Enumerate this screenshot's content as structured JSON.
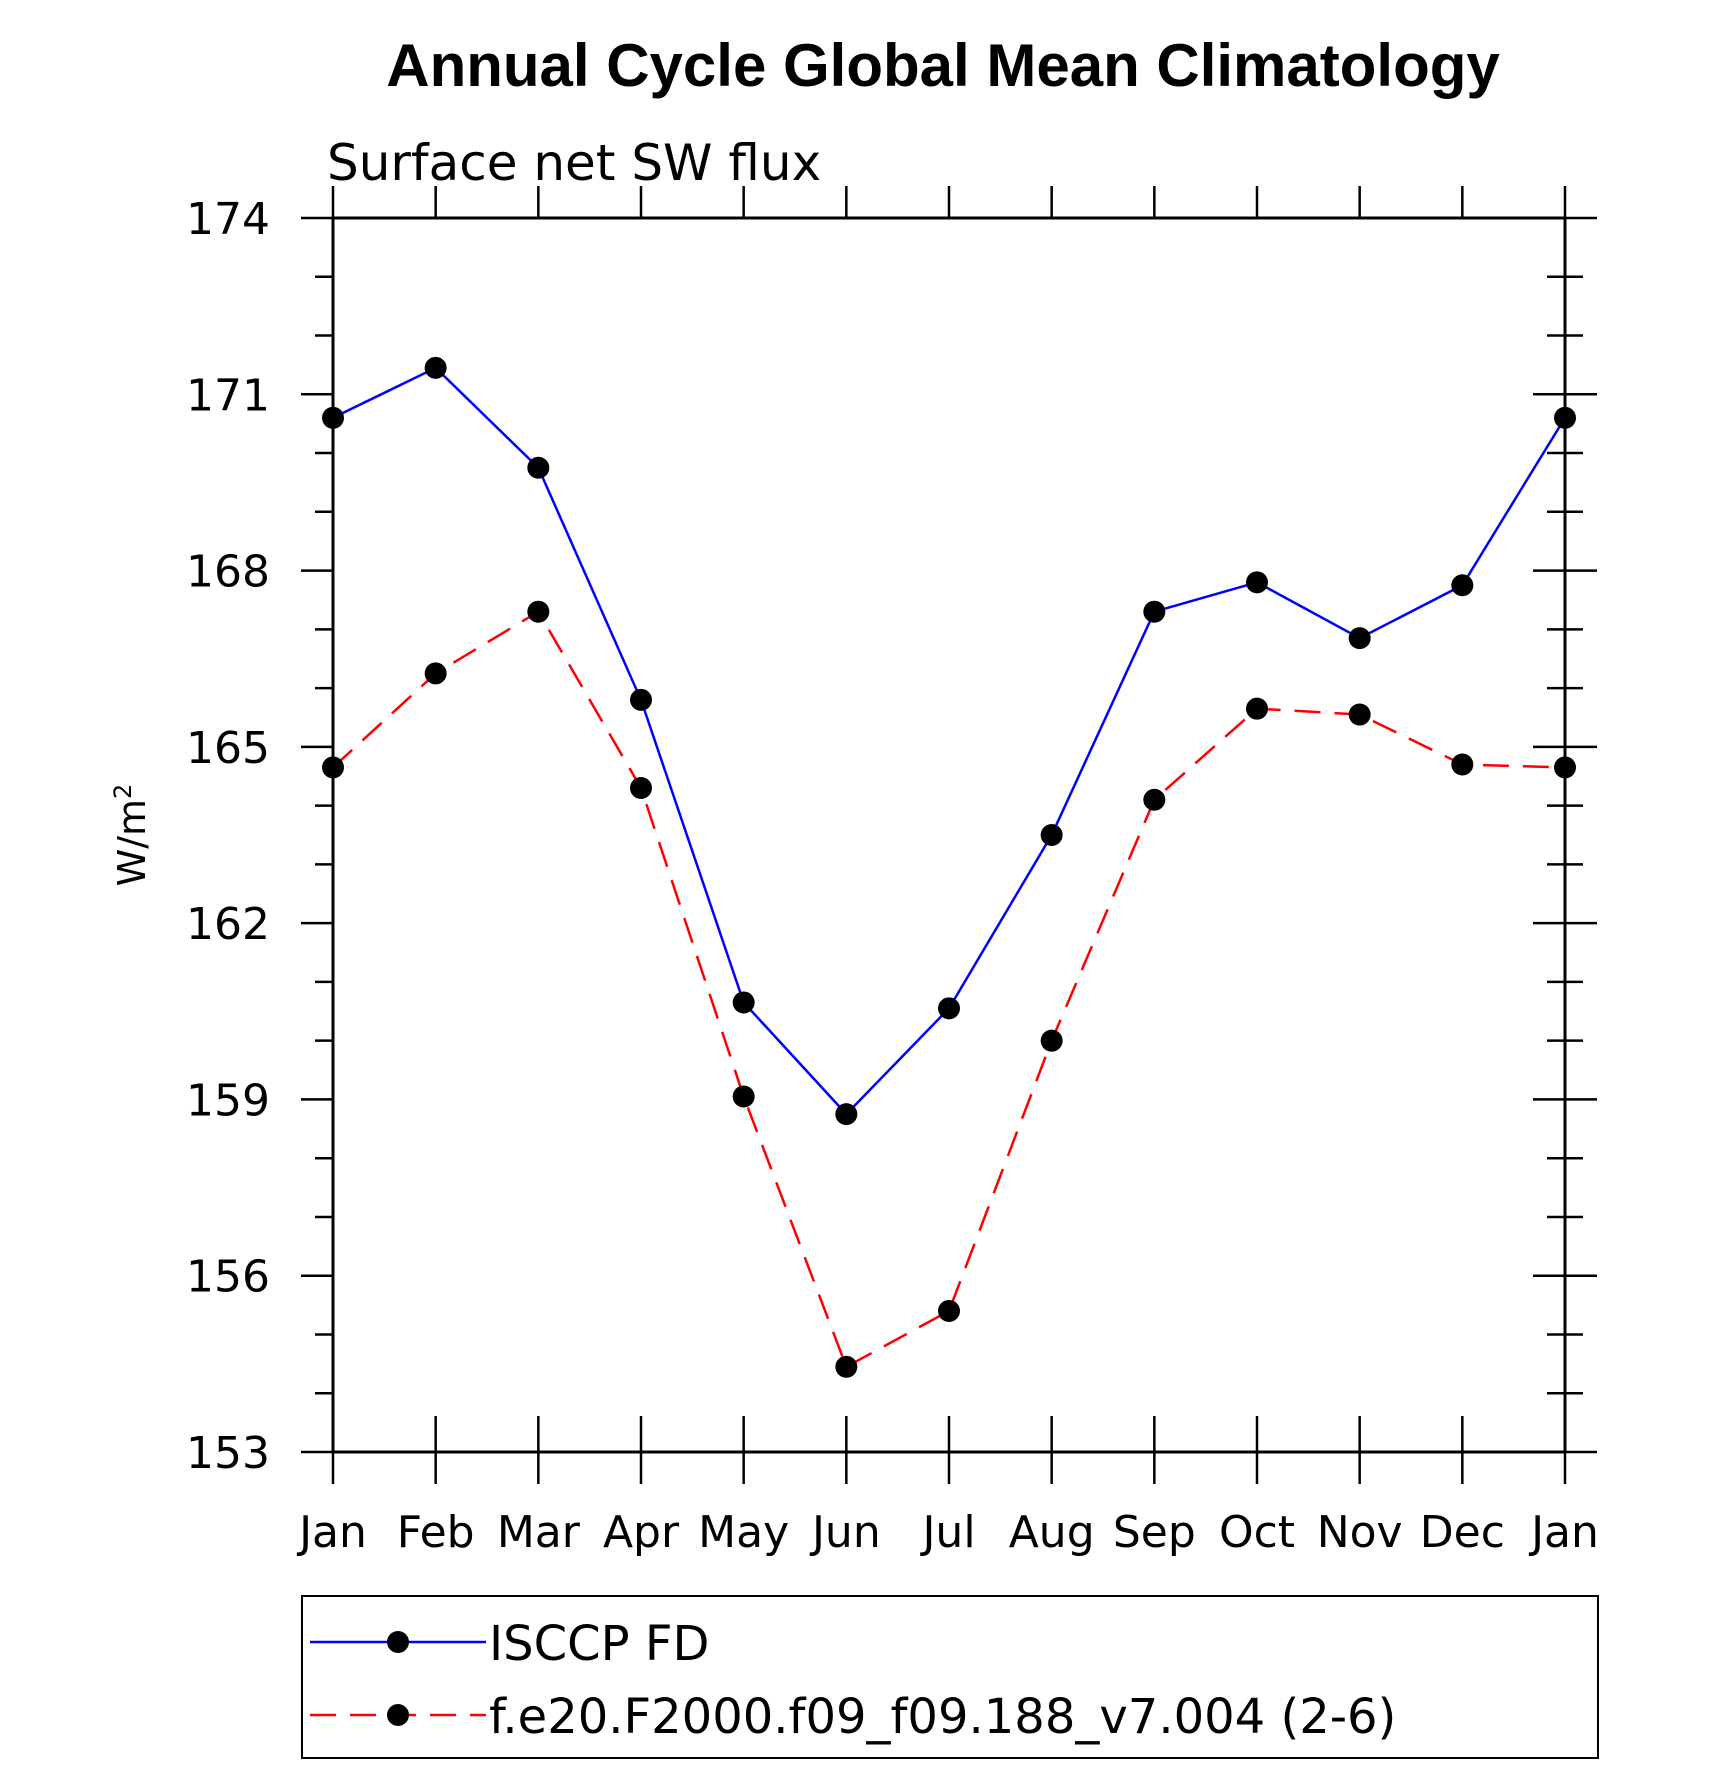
{
  "chart_data": {
    "type": "line",
    "title": "Annual Cycle Global Mean Climatology",
    "subtitle": "Surface net SW flux",
    "ylabel": "W/m",
    "ylabel_superscript": "2",
    "categories": [
      "Jan",
      "Feb",
      "Mar",
      "Apr",
      "May",
      "Jun",
      "Jul",
      "Aug",
      "Sep",
      "Oct",
      "Nov",
      "Dec",
      "Jan"
    ],
    "ylim": [
      153,
      174
    ],
    "yticks": [
      "174",
      "171",
      "168",
      "165",
      "162",
      "159",
      "156",
      "153"
    ],
    "ytick_values": [
      174,
      171,
      168,
      165,
      162,
      159,
      156,
      153
    ],
    "series": [
      {
        "name": "ISCCP FD",
        "color": "#0000ff",
        "dash": "solid",
        "values": [
          170.6,
          171.45,
          169.75,
          165.8,
          160.65,
          158.75,
          160.55,
          163.5,
          167.3,
          167.8,
          166.85,
          167.75,
          170.6
        ]
      },
      {
        "name": "f.e20.F2000.f09_f09.188_v7.004 (2-6)",
        "color": "#ff0000",
        "dash": "dashed",
        "values": [
          164.65,
          166.25,
          167.3,
          164.3,
          159.05,
          154.45,
          155.4,
          160.0,
          164.1,
          165.65,
          165.55,
          164.7,
          164.65
        ]
      }
    ],
    "legend_position": "bottom"
  }
}
